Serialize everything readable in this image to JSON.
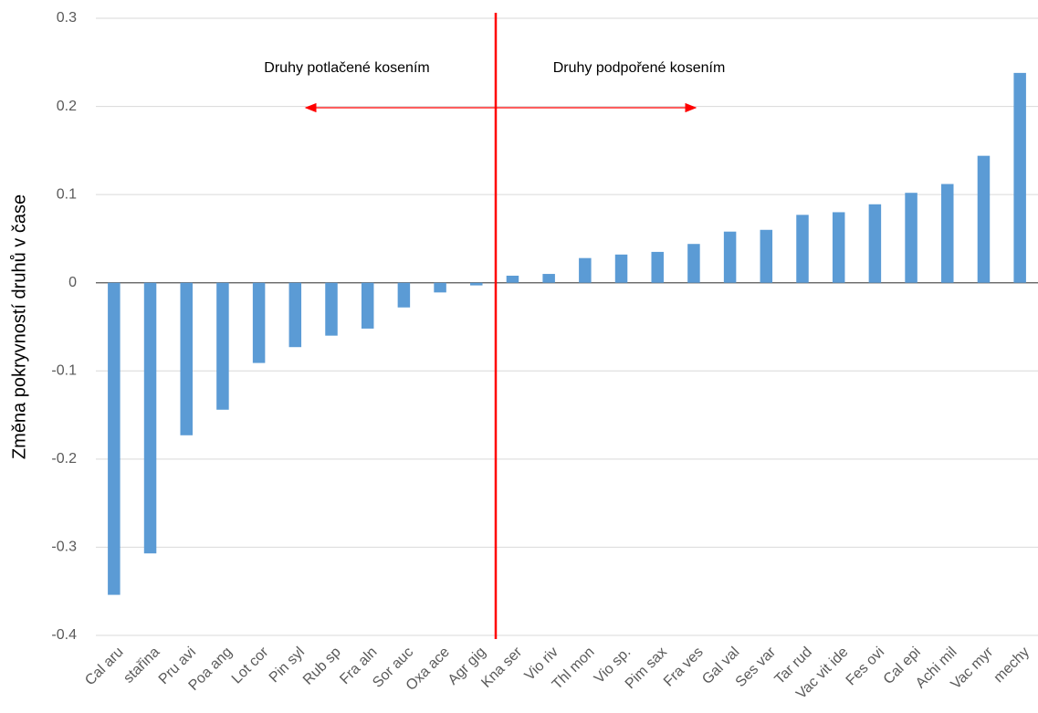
{
  "chart_data": {
    "type": "bar",
    "y_label": "Změna  pokryvností druhů v čase",
    "annotations": [
      "Druhy potlačené kosením",
      "Druhy podpořené kosením"
    ],
    "categories": [
      "Cal aru",
      "stařina",
      "Pru avi",
      "Poa ang",
      "Lot cor",
      "Pin syl",
      "Rub sp",
      "Fra aln",
      "Sor auc",
      "Oxa ace",
      "Agr gig",
      "Kna ser",
      "Vio riv",
      "Thl mon",
      "Vio sp.",
      "Pim sax",
      "Fra ves",
      "Gal val",
      "Ses var",
      "Tar rud",
      "Vac vit ide",
      "Fes ovi",
      "Cal epi",
      "Achi mil",
      "Vac myr",
      "mechy"
    ],
    "values": [
      -0.354,
      -0.307,
      -0.173,
      -0.144,
      -0.091,
      -0.073,
      -0.06,
      -0.052,
      -0.028,
      -0.011,
      -0.003,
      0.008,
      0.01,
      0.028,
      0.032,
      0.035,
      0.044,
      0.058,
      0.06,
      0.077,
      0.08,
      0.089,
      0.102,
      0.112,
      0.144,
      0.238
    ],
    "color": "#5b9bd5",
    "ylim": [
      -0.4,
      0.3
    ],
    "yticks": [
      0.3,
      0.2,
      0.1,
      0,
      -0.1,
      -0.2,
      -0.3,
      -0.4
    ],
    "grid": true
  }
}
